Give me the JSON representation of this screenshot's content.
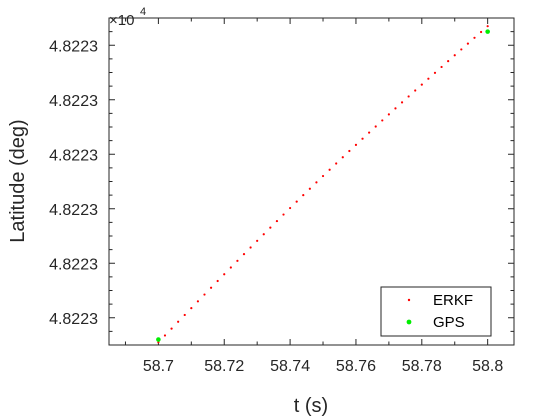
{
  "chart_data": {
    "type": "scatter",
    "xlabel": "t (s)",
    "ylabel": "Latitude (deg)",
    "y_multiplier": {
      "base": "×10",
      "exponent": "4"
    },
    "xlim": [
      58.685,
      58.808
    ],
    "ylim": [
      0,
      6
    ],
    "x_ticks": [
      58.7,
      58.72,
      58.74,
      58.76,
      58.78,
      58.8
    ],
    "x_tick_labels": [
      "58.7",
      "58.72",
      "58.74",
      "58.76",
      "58.78",
      "58.8"
    ],
    "y_ticks": [
      0.5,
      1.5,
      2.5,
      3.5,
      4.5,
      5.5
    ],
    "y_tick_labels": [
      "4.8223",
      "4.8223",
      "4.8223",
      "4.8223",
      "4.8223",
      "4.8223"
    ],
    "grid": false,
    "legend_position": "bottom-right",
    "series": [
      {
        "name": "ERKF",
        "marker": "dot",
        "color": "#ff0000",
        "x_start": 58.7,
        "x_end": 58.8,
        "count": 51,
        "y_start": 0.05,
        "y_end": 5.85
      },
      {
        "name": "GPS",
        "marker": "circle",
        "color": "#00ee00",
        "points": [
          {
            "x": 58.7,
            "y": 0.1
          },
          {
            "x": 58.8,
            "y": 5.75
          }
        ]
      }
    ]
  },
  "colors": {
    "axis": "#262626",
    "erkf": "#ff0000",
    "gps": "#00ee00"
  }
}
